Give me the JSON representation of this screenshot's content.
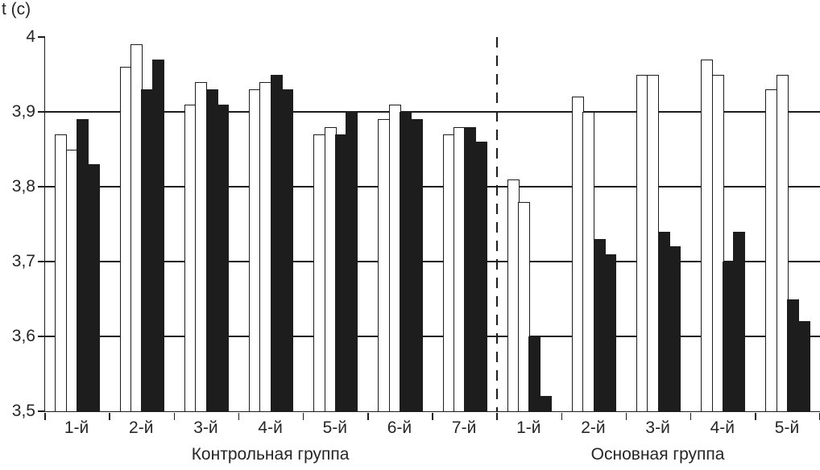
{
  "chart_data": {
    "type": "bar",
    "title": "",
    "ylabel": "t (c)",
    "xlabel": "",
    "ylim": [
      3.5,
      4.0
    ],
    "yticks": [
      3.5,
      3.6,
      3.7,
      3.8,
      3.9,
      4.0
    ],
    "ytick_labels": [
      "3,5",
      "3,6",
      "3,7",
      "3,8",
      "3,9",
      "4"
    ],
    "gridlines": [
      3.6,
      3.7,
      3.8,
      3.9
    ],
    "legend": "none",
    "bar_series_style": [
      "white",
      "white",
      "black",
      "black"
    ],
    "sections": [
      {
        "name": "Контрольная группа",
        "group_count": 7
      },
      {
        "name": "Основная группа",
        "group_count": 5
      }
    ],
    "separator_after_group": 7,
    "separator_style": "dashed-vertical-line",
    "groups": [
      {
        "section": "Контрольная группа",
        "label": "1-й",
        "values": [
          3.87,
          3.85,
          3.89,
          3.83
        ]
      },
      {
        "section": "Контрольная группа",
        "label": "2-й",
        "values": [
          3.96,
          3.99,
          3.93,
          3.97
        ]
      },
      {
        "section": "Контрольная группа",
        "label": "3-й",
        "values": [
          3.91,
          3.94,
          3.93,
          3.91
        ]
      },
      {
        "section": "Контрольная группа",
        "label": "4-й",
        "values": [
          3.93,
          3.94,
          3.95,
          3.93
        ]
      },
      {
        "section": "Контрольная группа",
        "label": "5-й",
        "values": [
          3.87,
          3.88,
          3.87,
          3.9
        ]
      },
      {
        "section": "Контрольная группа",
        "label": "6-й",
        "values": [
          3.89,
          3.91,
          3.9,
          3.89
        ]
      },
      {
        "section": "Контрольная группа",
        "label": "7-й",
        "values": [
          3.87,
          3.88,
          3.88,
          3.86
        ]
      },
      {
        "section": "Основная группа",
        "label": "1-й",
        "values": [
          3.81,
          3.78,
          3.6,
          3.52
        ]
      },
      {
        "section": "Основная группа",
        "label": "2-й",
        "values": [
          3.92,
          3.9,
          3.73,
          3.71
        ]
      },
      {
        "section": "Основная группа",
        "label": "3-й",
        "values": [
          3.95,
          3.95,
          3.74,
          3.72
        ]
      },
      {
        "section": "Основная группа",
        "label": "4-й",
        "values": [
          3.97,
          3.95,
          3.7,
          3.74
        ]
      },
      {
        "section": "Основная группа",
        "label": "5-й",
        "values": [
          3.93,
          3.95,
          3.65,
          3.62
        ]
      }
    ],
    "colors": {
      "bar_black": "#1d1d1d",
      "bar_white": "#ffffff",
      "line": "#1d1d1d",
      "text": "#262626",
      "background": "#ffffff"
    }
  }
}
